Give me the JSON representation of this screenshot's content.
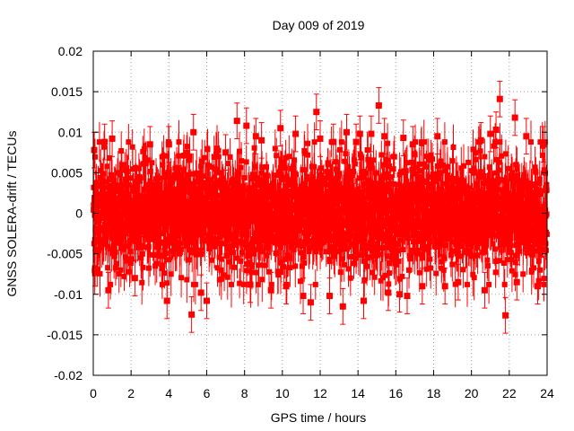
{
  "chart_data": {
    "type": "scatter",
    "title": "Day 009 of 2019",
    "xlabel": "GPS time / hours",
    "ylabel": "GNSS SOLERA-drift / TECUs",
    "xlim": [
      0,
      24
    ],
    "ylim": [
      -0.02,
      0.02
    ],
    "x_ticks": [
      0,
      2,
      4,
      6,
      8,
      10,
      12,
      14,
      16,
      18,
      20,
      22,
      24
    ],
    "x_tick_labels": [
      "0",
      "2",
      "4",
      "6",
      "8",
      "10",
      "12",
      "14",
      "16",
      "18",
      "20",
      "22",
      "24"
    ],
    "y_ticks": [
      -0.02,
      -0.015,
      -0.01,
      -0.005,
      0,
      0.005,
      0.01,
      0.015,
      0.02
    ],
    "y_tick_labels": [
      "-0.02",
      "-0.015",
      "-0.01",
      "-0.005",
      "0",
      "0.005",
      "0.01",
      "0.015",
      "0.02"
    ],
    "grid": true,
    "marker": "square",
    "error_bars": true,
    "series_color": "#ff0000",
    "series": [
      {
        "x": [
          0.05,
          0.1,
          0.6,
          0.8,
          1.0,
          2.2,
          3.0,
          3.9,
          4.0,
          5.2,
          5.3,
          5.7,
          6.0,
          7.0,
          7.6,
          8.1,
          8.3,
          8.6,
          8.9,
          9.4,
          9.9,
          10.2,
          10.7,
          11.1,
          11.5,
          11.8,
          12.0,
          12.5,
          12.7,
          13.2,
          13.4,
          13.9,
          14.1,
          14.3,
          14.7,
          15.1,
          15.4,
          15.6,
          16.2,
          16.4,
          16.6,
          16.9,
          17.4,
          18.2,
          18.6,
          19.3,
          20.5,
          20.7,
          21.0,
          21.3,
          21.5,
          21.8,
          22.3,
          22.4,
          22.9,
          23.5,
          23.8
        ],
        "y": [
          0.0078,
          -0.0068,
          0.0088,
          -0.0095,
          0.0092,
          -0.008,
          0.0085,
          -0.0108,
          0.0085,
          -0.0125,
          0.01,
          -0.0098,
          -0.0108,
          0.0075,
          0.0114,
          0.0108,
          -0.0088,
          0.0095,
          0.009,
          -0.0095,
          0.0105,
          -0.009,
          0.0098,
          -0.0102,
          -0.011,
          0.0125,
          0.0092,
          -0.0102,
          0.0088,
          -0.0115,
          0.01,
          0.0088,
          0.0098,
          -0.0108,
          0.0098,
          0.0133,
          0.0095,
          -0.0098,
          -0.01,
          0.0093,
          -0.0102,
          0.0085,
          -0.009,
          0.0095,
          -0.009,
          -0.0085,
          0.009,
          -0.0095,
          0.0098,
          0.0103,
          0.0141,
          -0.0126,
          0.0118,
          -0.0085,
          0.0095,
          -0.009,
          0.0085
        ]
      }
    ]
  }
}
